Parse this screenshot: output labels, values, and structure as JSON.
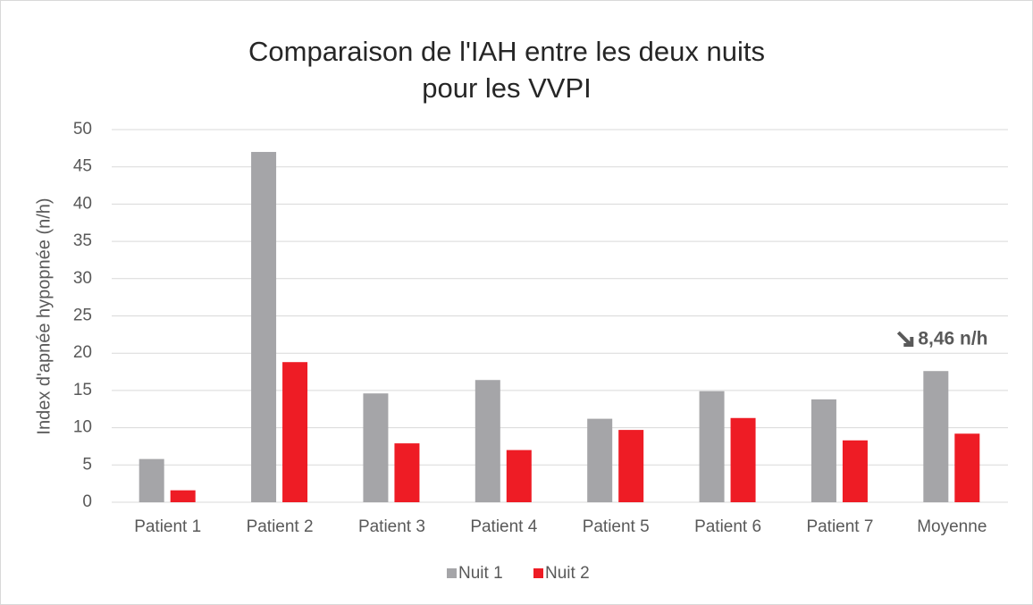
{
  "chart_data": {
    "type": "bar",
    "title": [
      "Comparaison de l'IAH entre les deux nuits",
      "pour les VVPI"
    ],
    "y_label": "Index d'apnée hypopnée (n/h)",
    "categories": [
      "Patient 1",
      "Patient 2",
      "Patient 3",
      "Patient 4",
      "Patient 5",
      "Patient 6",
      "Patient 7",
      "Moyenne"
    ],
    "series": [
      {
        "name": "Nuit 1",
        "color": "#a5a5a8",
        "values": [
          5.8,
          47.0,
          14.6,
          16.4,
          11.2,
          14.9,
          13.8,
          17.6
        ]
      },
      {
        "name": "Nuit 2",
        "color": "#ee1c25",
        "values": [
          1.6,
          18.8,
          7.9,
          7.0,
          9.7,
          11.3,
          8.3,
          9.2
        ]
      }
    ],
    "annotation": "8,46 n/h",
    "ylim": [
      0,
      50
    ],
    "yticks": [
      0,
      5,
      10,
      15,
      20,
      25,
      30,
      35,
      40,
      45,
      50
    ],
    "grid": true,
    "legend": "bottom"
  }
}
